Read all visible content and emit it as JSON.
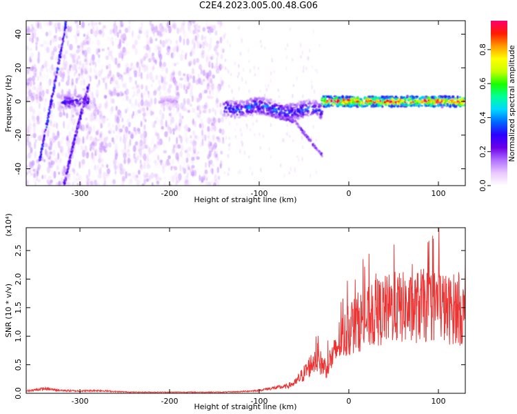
{
  "figure": {
    "title": "C2E4.2023.005.00.48.G06"
  },
  "chart_data": [
    {
      "type": "heatmap",
      "title": "",
      "xlabel": "Height of straight line (km)",
      "ylabel": "Frequency (Hz)",
      "xlim": [
        -360,
        130
      ],
      "ylim": [
        -50,
        48
      ],
      "x_ticks": [
        -300,
        -200,
        -100,
        0,
        100
      ],
      "y_ticks": [
        -40,
        -20,
        0,
        20,
        40
      ],
      "colorbar": {
        "label": "Normalized spectral amplitude",
        "range": [
          0,
          0.97
        ],
        "ticks": [
          0.0,
          0.2,
          0.4,
          0.6,
          0.8
        ],
        "colormap": [
          "#ffffff",
          "#e9c8ff",
          "#b070ff",
          "#6a00e8",
          "#2b00ff",
          "#0066ff",
          "#00d7ff",
          "#00ff9a",
          "#19ff00",
          "#c8ff00",
          "#ffff00",
          "#ff9a00",
          "#ff1a00",
          "#ff0070"
        ]
      },
      "features": [
        {
          "name": "noise field",
          "x_range": [
            -360,
            -140
          ],
          "freq_range": [
            -50,
            48
          ],
          "amplitude": 0.08
        },
        {
          "name": "cluster",
          "x_range": [
            -320,
            -290
          ],
          "freq_center": 0,
          "freq_halfwidth": 4,
          "amplitude": 0.3
        },
        {
          "name": "cluster",
          "x_range": [
            -210,
            -190
          ],
          "freq_center": 0,
          "freq_halfwidth": 3,
          "amplitude": 0.12
        },
        {
          "name": "band",
          "x_range": [
            -140,
            -30
          ],
          "freq_center": -3,
          "freq_halfwidth": 5,
          "amplitude": 0.35
        },
        {
          "name": "band",
          "x_range": [
            -30,
            130
          ],
          "freq_center": 0,
          "freq_halfwidth": 3,
          "amplitude": 0.95
        },
        {
          "name": "diagonal trace",
          "points": [
            [
              -345,
              -35
            ],
            [
              -330,
              5
            ],
            [
              -315,
              48
            ]
          ],
          "amplitude": 0.3
        },
        {
          "name": "diagonal trace",
          "points": [
            [
              -318,
              -50
            ],
            [
              -305,
              -20
            ],
            [
              -290,
              10
            ]
          ],
          "amplitude": 0.25
        },
        {
          "name": "branch",
          "points": [
            [
              -110,
              -5
            ],
            [
              -60,
              -12
            ],
            [
              -30,
              -32
            ]
          ],
          "amplitude": 0.2
        }
      ]
    },
    {
      "type": "line",
      "title": "",
      "xlabel": "Height of straight line (km)",
      "ylabel": "SNR (10 * v/v)",
      "y_multiplier": "(x10⁴)",
      "xlim": [
        -360,
        130
      ],
      "ylim": [
        0,
        2.9
      ],
      "x_ticks": [
        -300,
        -200,
        -100,
        0,
        100
      ],
      "y_ticks": [
        0.0,
        0.5,
        1.0,
        1.5,
        2.0,
        2.5
      ],
      "series": [
        {
          "color": "#ee3333",
          "x": [
            -360,
            -340,
            -320,
            -300,
            -280,
            -260,
            -240,
            -220,
            -200,
            -180,
            -160,
            -140,
            -120,
            -100,
            -90,
            -80,
            -70,
            -60,
            -50,
            -45,
            -40,
            -35,
            -30,
            -25,
            -20,
            -15,
            -10,
            -5,
            0,
            10,
            20,
            30,
            40,
            50,
            60,
            70,
            80,
            90,
            100,
            110,
            120,
            130
          ],
          "values": [
            0.04,
            0.08,
            0.05,
            0.04,
            0.05,
            0.03,
            0.02,
            0.02,
            0.02,
            0.02,
            0.02,
            0.02,
            0.03,
            0.05,
            0.08,
            0.1,
            0.12,
            0.18,
            0.35,
            0.45,
            0.55,
            0.62,
            0.5,
            0.45,
            0.6,
            0.7,
            0.95,
            1.0,
            1.1,
            1.25,
            1.3,
            1.4,
            1.45,
            1.5,
            1.5,
            1.45,
            1.55,
            1.5,
            1.6,
            1.45,
            1.5,
            1.35
          ]
        }
      ]
    }
  ]
}
